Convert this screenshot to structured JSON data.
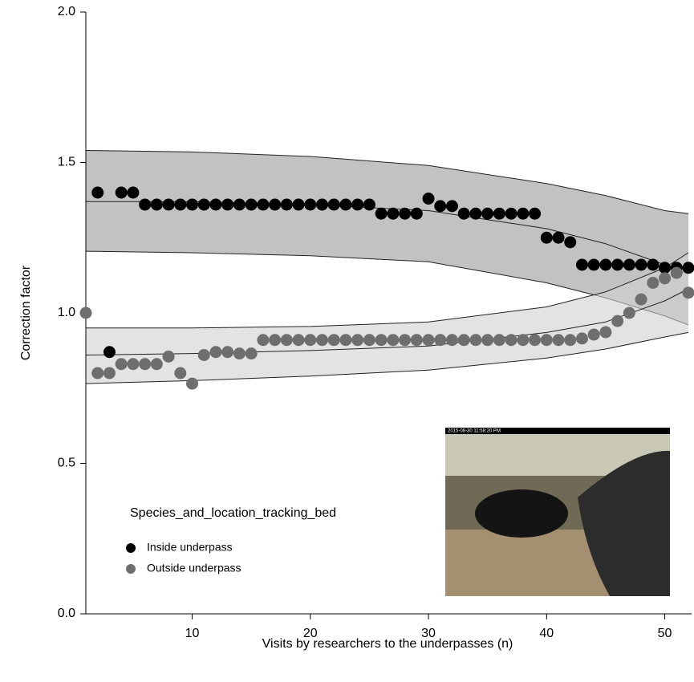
{
  "chart_data": {
    "type": "scatter",
    "x_label": "Visits by researchers to the underpasses (n)",
    "y_label": "Correction factor",
    "legend_title": "Species_and_location_tracking_bed",
    "legend_position": "lower left",
    "xlim": [
      1,
      52
    ],
    "ylim": [
      0,
      2
    ],
    "xticks": [
      10,
      20,
      30,
      40,
      50
    ],
    "yticks": [
      {
        "value": 0,
        "label": "0.0"
      },
      {
        "value": 0.5,
        "label": "0.5"
      },
      {
        "value": 1,
        "label": "1.0"
      },
      {
        "value": 1.5,
        "label": "1.5"
      },
      {
        "value": 2,
        "label": "2.0"
      }
    ],
    "x": [
      1,
      2,
      3,
      4,
      5,
      6,
      7,
      8,
      9,
      10,
      11,
      12,
      13,
      14,
      15,
      16,
      17,
      18,
      19,
      20,
      21,
      22,
      23,
      24,
      25,
      26,
      27,
      28,
      29,
      30,
      31,
      32,
      33,
      34,
      35,
      36,
      37,
      38,
      39,
      40,
      41,
      42,
      43,
      44,
      45,
      46,
      47,
      48,
      49,
      50,
      51,
      52
    ],
    "series": [
      {
        "name": "Inside underpass",
        "color": "#000000",
        "values": [
          null,
          1.4,
          0.87,
          1.4,
          1.4,
          1.36,
          1.36,
          1.36,
          1.36,
          1.36,
          1.36,
          1.36,
          1.36,
          1.36,
          1.36,
          1.36,
          1.36,
          1.36,
          1.36,
          1.36,
          1.36,
          1.36,
          1.36,
          1.36,
          1.36,
          1.33,
          1.33,
          1.33,
          1.33,
          1.38,
          1.355,
          1.355,
          1.33,
          1.33,
          1.33,
          1.33,
          1.33,
          1.33,
          1.33,
          1.25,
          1.25,
          1.235,
          1.16,
          1.16,
          1.16,
          1.16,
          1.16,
          1.16,
          1.16,
          1.15,
          1.15,
          1.15
        ]
      },
      {
        "name": "Outside underpass",
        "color": "#6e6e6e",
        "values": [
          1.0,
          0.8,
          0.8,
          0.83,
          0.83,
          0.83,
          0.83,
          0.855,
          0.8,
          0.765,
          0.86,
          0.87,
          0.87,
          0.865,
          0.865,
          0.91,
          0.91,
          0.91,
          0.91,
          0.91,
          0.91,
          0.91,
          0.91,
          0.91,
          0.91,
          0.91,
          0.91,
          0.91,
          0.91,
          0.91,
          0.91,
          0.91,
          0.91,
          0.91,
          0.91,
          0.91,
          0.91,
          0.91,
          0.91,
          0.91,
          0.91,
          0.91,
          0.915,
          0.928,
          0.936,
          0.973,
          1.0,
          1.045,
          1.1,
          1.115,
          1.133,
          1.067
        ]
      }
    ],
    "bands": [
      {
        "color": "#9a9a9a",
        "x": [
          1,
          10,
          20,
          30,
          40,
          45,
          50,
          52
        ],
        "upper": [
          1.54,
          1.535,
          1.52,
          1.49,
          1.43,
          1.39,
          1.34,
          1.33
        ],
        "mid": [
          1.37,
          1.37,
          1.36,
          1.34,
          1.28,
          1.23,
          1.16,
          1.13
        ],
        "lower": [
          1.205,
          1.2,
          1.19,
          1.17,
          1.1,
          1.05,
          0.99,
          0.96
        ]
      },
      {
        "color": "#d0d0d0",
        "x": [
          1,
          10,
          20,
          30,
          40,
          45,
          50,
          52
        ],
        "upper": [
          0.95,
          0.95,
          0.955,
          0.97,
          1.02,
          1.07,
          1.15,
          1.2
        ],
        "mid": [
          0.86,
          0.865,
          0.875,
          0.89,
          0.935,
          0.97,
          1.04,
          1.08
        ],
        "lower": [
          0.765,
          0.775,
          0.79,
          0.81,
          0.85,
          0.88,
          0.92,
          0.935
        ]
      }
    ],
    "photo_caption": "2015-08-30 11:58:20 PM"
  }
}
